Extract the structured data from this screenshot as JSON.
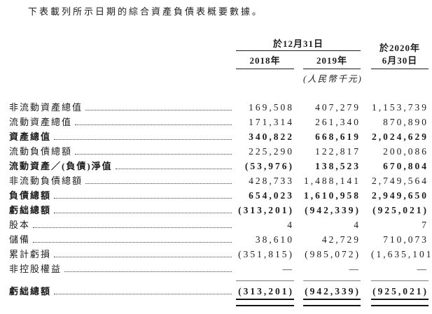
{
  "intro": "下表載列所示日期的綜合資產負債表概要數據。",
  "table": {
    "group_header": "於12月31日",
    "col3_header_line1": "於2020年",
    "col_headers": [
      "2018年",
      "2019年",
      "6月30日"
    ],
    "unit_note": "(人民幣千元)",
    "rows": [
      {
        "label": "非流動資產總值",
        "v1": "169,508",
        "v2": "407,279",
        "v3": "1,153,739"
      },
      {
        "label": "流動資產總值",
        "v1": "171,314",
        "v2": "261,340",
        "v3": "870,890"
      },
      {
        "label": "資產總值",
        "v1": "340,822",
        "v2": "668,619",
        "v3": "2,024,629"
      },
      {
        "label": "流動負債總額",
        "v1": "225,290",
        "v2": "122,817",
        "v3": "200,086"
      },
      {
        "label": "流動資產／(負債)淨值",
        "v1": "(53,976)",
        "v2": "138,523",
        "v3": "670,804"
      },
      {
        "label": "非流動負債總額",
        "v1": "428,733",
        "v2": "1,488,141",
        "v3": "2,749,564"
      },
      {
        "label": "負債總額",
        "v1": "654,023",
        "v2": "1,610,958",
        "v3": "2,949,650"
      },
      {
        "label": "虧絀總額",
        "v1": "(313,201)",
        "v2": "(942,339)",
        "v3": "(925,021)"
      },
      {
        "label": "股本",
        "v1": "4",
        "v2": "4",
        "v3": "7"
      },
      {
        "label": "儲備",
        "v1": "38,610",
        "v2": "42,729",
        "v3": "710,073"
      },
      {
        "label": "累計虧損",
        "v1": "(351,815)",
        "v2": "(985,072)",
        "v3": "(1,635,101)"
      },
      {
        "label": "非控股權益",
        "v1": "—",
        "v2": "—",
        "v3": "—"
      },
      {
        "label": "虧絀總額",
        "v1": "(313,201)",
        "v2": "(942,339)",
        "v3": "(925,021)"
      }
    ]
  }
}
